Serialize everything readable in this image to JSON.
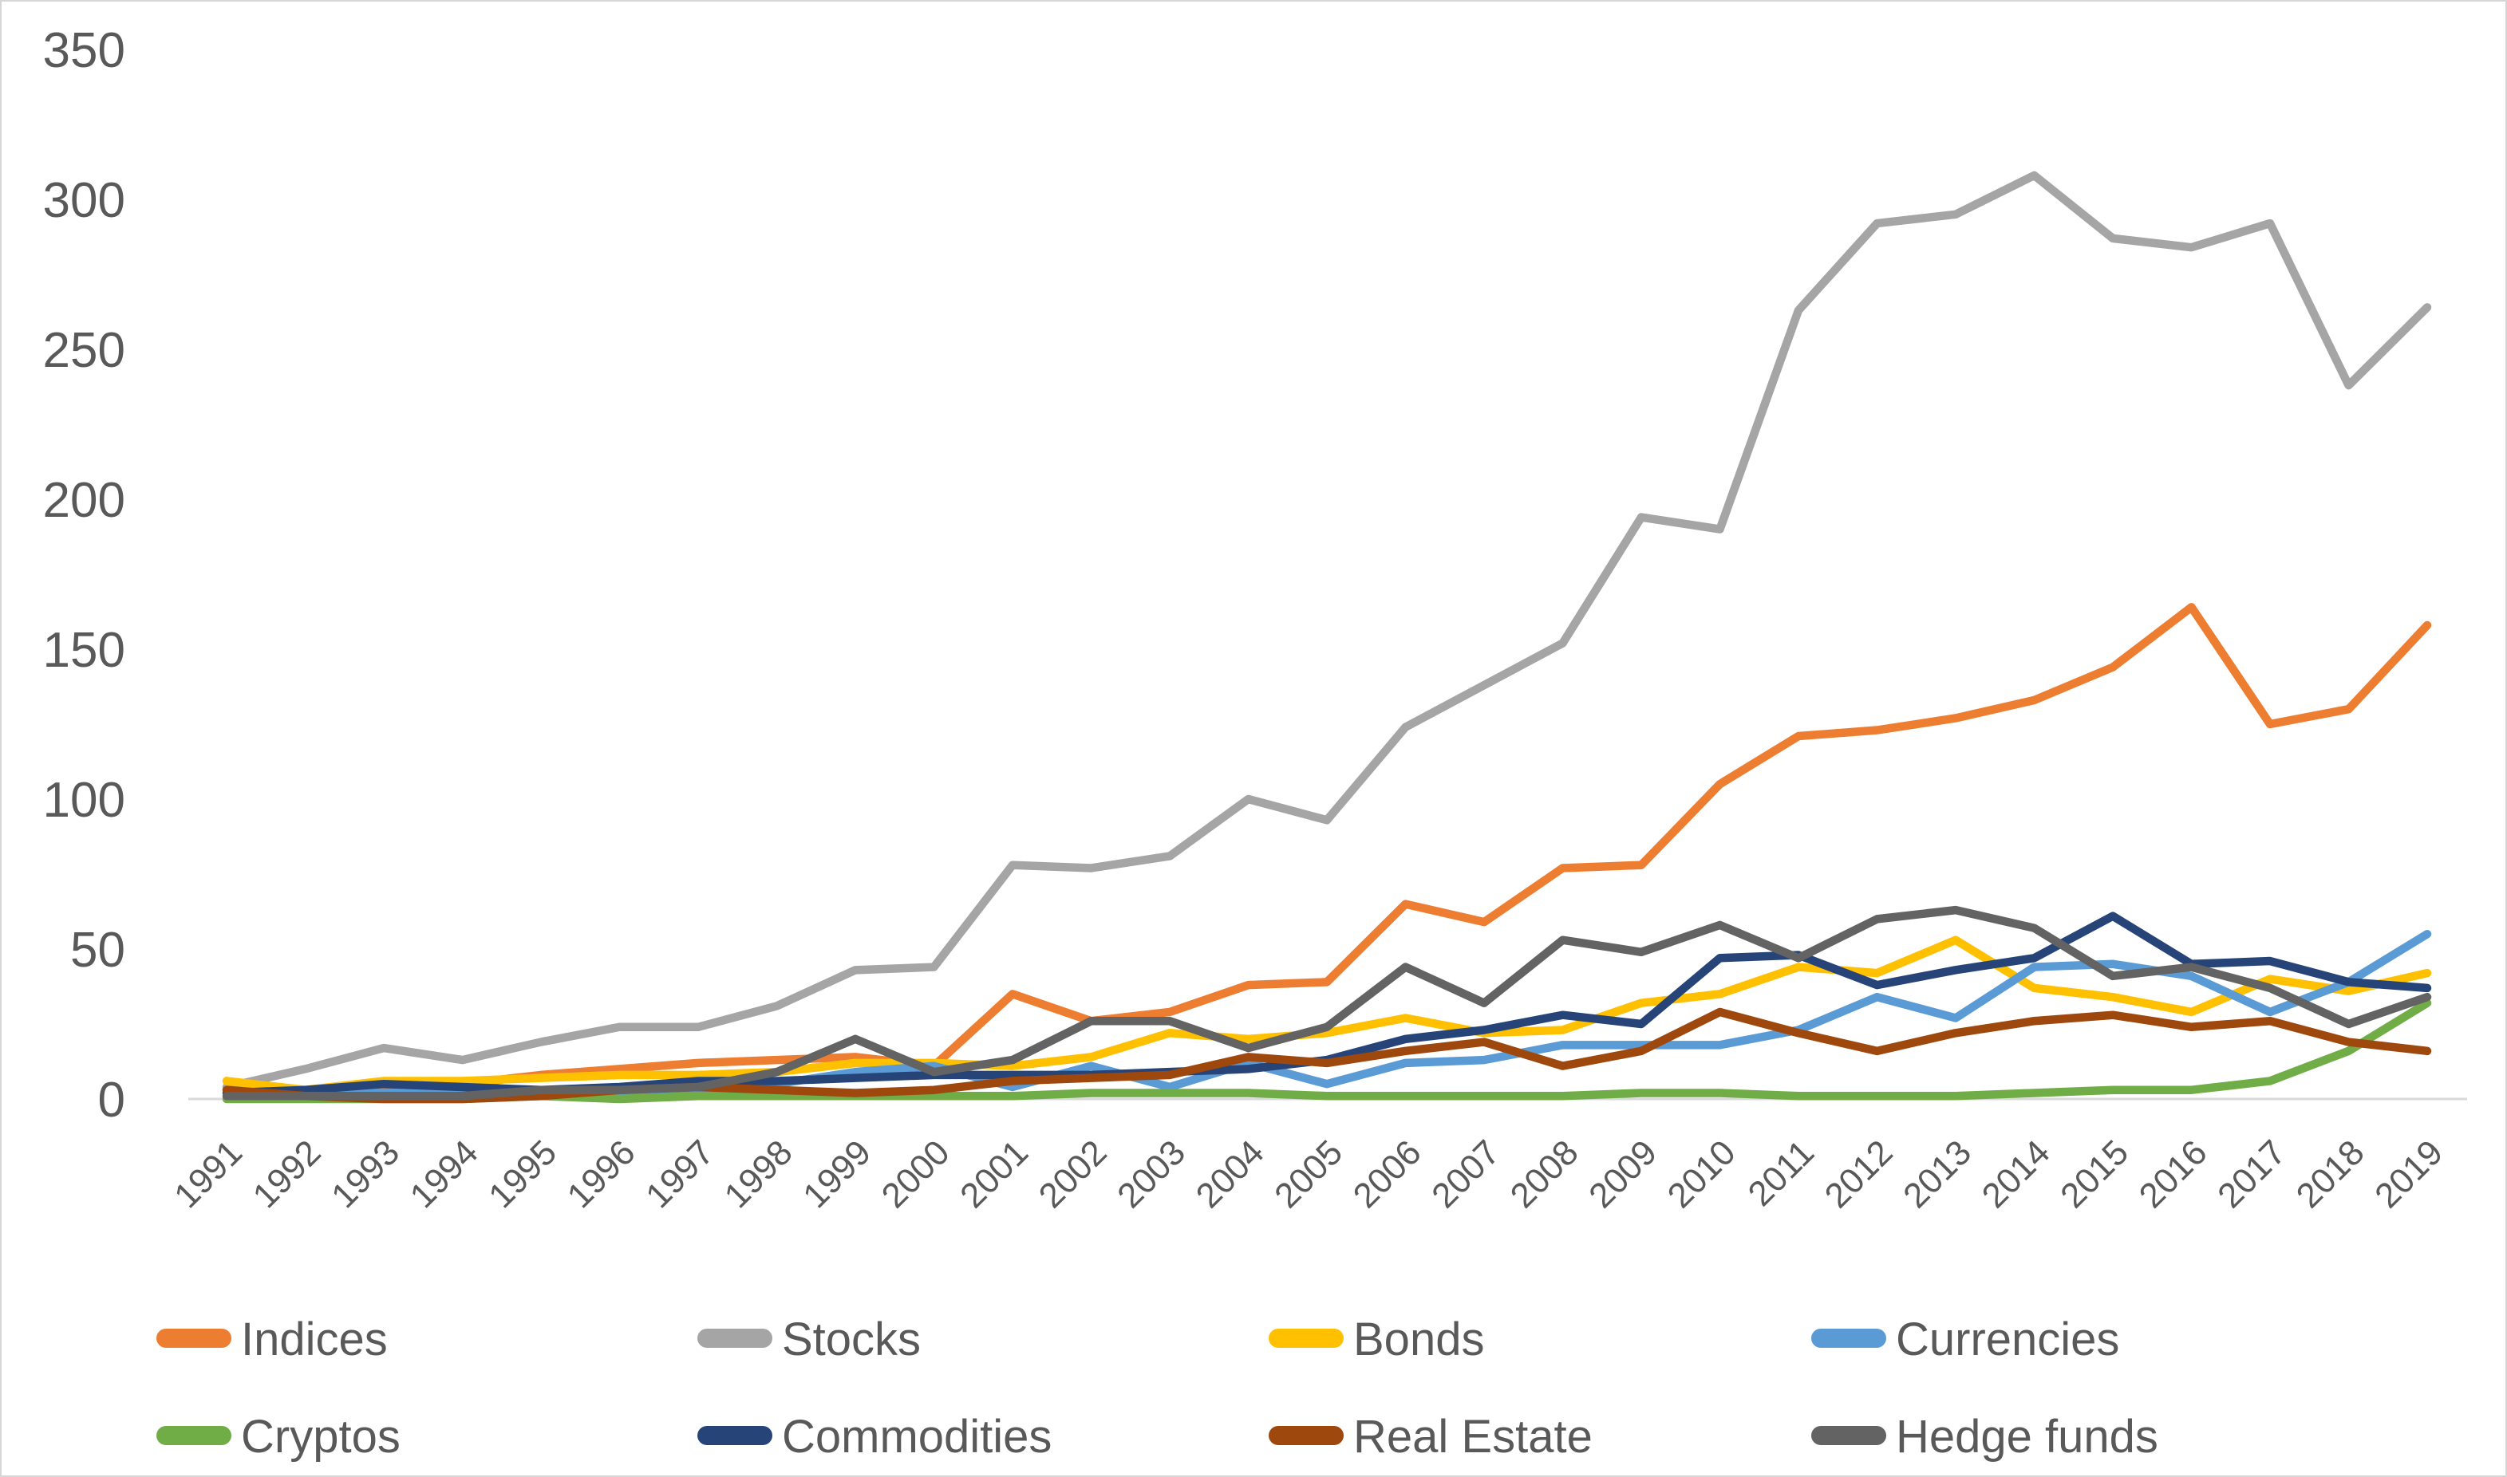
{
  "chart_data": {
    "type": "line",
    "title": "",
    "xlabel": "",
    "ylabel": "",
    "grid": "off",
    "background_color": "#FFFFFF",
    "axis_label_color": "#595959",
    "axis_line_color": "#D9D9D9",
    "x_axis": {
      "label_rotation_deg": 45
    },
    "y_axis": {
      "min": 0,
      "max": 350,
      "tick_step": 50,
      "ticks": [
        0,
        50,
        100,
        150,
        200,
        250,
        300,
        350
      ]
    },
    "legend": {
      "position": "bottom",
      "rows": [
        [
          "Indices",
          "Stocks",
          "Bonds",
          "Currencies"
        ],
        [
          "Cryptos",
          "Commodities",
          "Real Estate",
          "Hedge funds"
        ]
      ]
    },
    "categories": [
      1991,
      1992,
      1993,
      1994,
      1995,
      1996,
      1997,
      1998,
      1999,
      2000,
      2001,
      2002,
      2003,
      2004,
      2005,
      2006,
      2007,
      2008,
      2009,
      2010,
      2011,
      2012,
      2013,
      2014,
      2015,
      2016,
      2017,
      2018,
      2019
    ],
    "series": [
      {
        "name": "Indices",
        "color": "#ED7D31",
        "values": [
          3,
          2,
          4,
          5,
          8,
          10,
          12,
          13,
          14,
          11,
          35,
          26,
          29,
          38,
          39,
          65,
          59,
          77,
          78,
          105,
          121,
          123,
          127,
          133,
          144,
          164,
          125,
          130,
          158
        ]
      },
      {
        "name": "Stocks",
        "color": "#A5A5A5",
        "values": [
          4,
          10,
          17,
          13,
          19,
          24,
          24,
          31,
          43,
          44,
          78,
          77,
          81,
          100,
          93,
          124,
          138,
          152,
          194,
          190,
          263,
          292,
          295,
          308,
          287,
          284,
          292,
          238,
          264
        ]
      },
      {
        "name": "Bonds",
        "color": "#FFC000",
        "values": [
          6,
          3,
          6,
          6,
          7,
          8,
          8,
          9,
          12,
          12,
          11,
          14,
          22,
          20,
          22,
          27,
          22,
          23,
          32,
          35,
          44,
          42,
          53,
          37,
          34,
          29,
          40,
          36,
          42
        ]
      },
      {
        "name": "Currencies",
        "color": "#5B9BD5",
        "values": [
          1,
          1,
          2,
          2,
          2,
          2,
          2,
          5,
          9,
          11,
          4,
          11,
          4,
          12,
          5,
          12,
          13,
          18,
          18,
          18,
          23,
          34,
          27,
          44,
          45,
          41,
          29,
          39,
          55
        ]
      },
      {
        "name": "Cryptos",
        "color": "#70AD47",
        "values": [
          0,
          0,
          0,
          0,
          1,
          0,
          1,
          1,
          1,
          1,
          1,
          2,
          2,
          2,
          1,
          1,
          1,
          1,
          2,
          2,
          1,
          1,
          1,
          2,
          3,
          3,
          6,
          16,
          32
        ]
      },
      {
        "name": "Commodities",
        "color": "#264478",
        "values": [
          2,
          3,
          5,
          4,
          3,
          4,
          6,
          6,
          7,
          8,
          8,
          8,
          9,
          10,
          13,
          20,
          23,
          28,
          25,
          47,
          48,
          38,
          43,
          47,
          61,
          45,
          46,
          39,
          37
        ]
      },
      {
        "name": "Real Estate",
        "color": "#9E480E",
        "values": [
          3,
          1,
          0,
          0,
          1,
          3,
          4,
          3,
          2,
          3,
          6,
          7,
          8,
          14,
          12,
          16,
          19,
          11,
          16,
          29,
          22,
          16,
          22,
          26,
          28,
          24,
          26,
          19,
          16
        ]
      },
      {
        "name": "Hedge funds",
        "color": "#636363",
        "values": [
          1,
          1,
          1,
          1,
          3,
          3,
          4,
          9,
          20,
          9,
          13,
          26,
          26,
          17,
          24,
          44,
          32,
          53,
          49,
          58,
          47,
          60,
          63,
          57,
          41,
          44,
          37,
          25,
          34
        ]
      }
    ]
  }
}
